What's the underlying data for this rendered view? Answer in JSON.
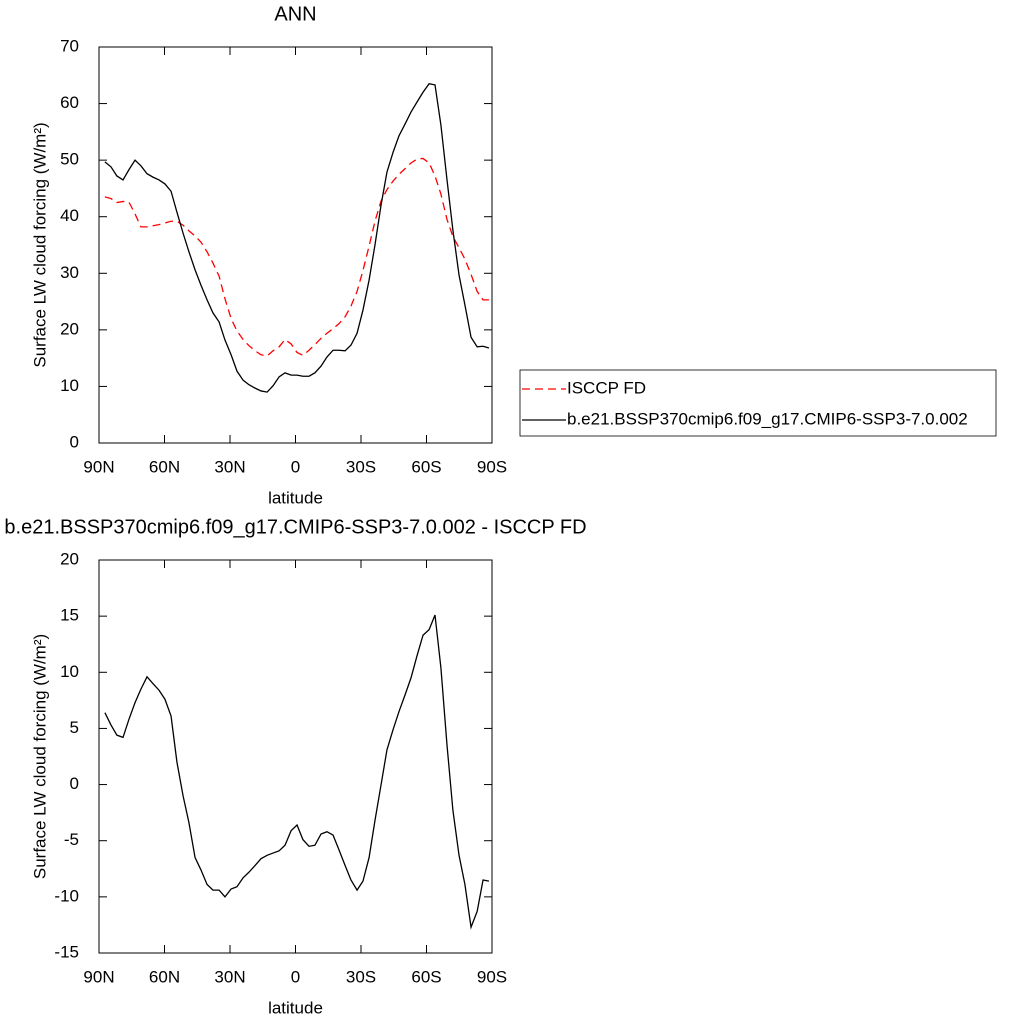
{
  "chart_data": [
    {
      "type": "line",
      "title": "ANN",
      "xlabel": "latitude",
      "ylabel": "Surface LW cloud forcing (W/m²)",
      "xlim": [
        90,
        -90
      ],
      "ylim": [
        0,
        70
      ],
      "xticks": [
        {
          "value": 90,
          "label": "90N"
        },
        {
          "value": 60,
          "label": "60N"
        },
        {
          "value": 30,
          "label": "30N"
        },
        0,
        {
          "value": -30,
          "label": "30S"
        },
        {
          "value": -60,
          "label": "60S"
        },
        {
          "value": -90,
          "label": "90S"
        }
      ],
      "yticks": [
        0,
        10,
        20,
        30,
        40,
        50,
        60,
        70
      ],
      "legend": "outside-right",
      "x": [
        87.3,
        84.5,
        81.8,
        79.0,
        76.3,
        73.5,
        70.8,
        68.0,
        65.3,
        62.5,
        59.8,
        57.0,
        54.3,
        51.5,
        48.8,
        46.0,
        43.3,
        40.5,
        37.8,
        35.0,
        32.3,
        29.5,
        26.8,
        24.0,
        21.3,
        18.5,
        15.8,
        13.0,
        10.3,
        7.5,
        4.8,
        2.0,
        -0.7,
        -3.4,
        -6.2,
        -8.9,
        -11.7,
        -14.4,
        -17.2,
        -19.9,
        -22.7,
        -25.4,
        -28.2,
        -30.9,
        -33.7,
        -36.4,
        -39.2,
        -41.9,
        -44.7,
        -47.4,
        -50.2,
        -52.9,
        -55.7,
        -58.4,
        -61.2,
        -63.9,
        -66.6,
        -69.4,
        -72.1,
        -74.9,
        -77.6,
        -80.4,
        -83.2,
        -85.9,
        -88.6
      ],
      "series": [
        {
          "name": "ISCCP FD",
          "color": "#ff0000",
          "dash": "dashed",
          "values": [
            43.5,
            43.2,
            42.5,
            42.7,
            42.6,
            40.5,
            38.2,
            38.2,
            38.4,
            38.6,
            38.9,
            39.2,
            39.2,
            38.5,
            37.5,
            36.6,
            35.5,
            33.8,
            31.8,
            29.5,
            25.5,
            22,
            19.8,
            18.3,
            17.2,
            16.3,
            15.6,
            15.4,
            16.3,
            17,
            18.3,
            17.5,
            16.0,
            15.5,
            16.4,
            17.4,
            18.5,
            19.4,
            20.2,
            21.1,
            22.3,
            24.2,
            26.8,
            30.5,
            34.8,
            39.2,
            42.8,
            44.8,
            46.3,
            47.5,
            48.5,
            49.5,
            50.2,
            50.3,
            49.5,
            47.2,
            44,
            39.5,
            36.5,
            34.5,
            32.5,
            29.8,
            26.8,
            25.3,
            25.3
          ]
        },
        {
          "name": "b.e21.BSSP370cmip6.f09_g17.CMIP6-SSP3-7.0.002",
          "color": "#000000",
          "dash": "solid",
          "values": [
            49.7,
            48.8,
            47.2,
            46.5,
            48.3,
            50.0,
            49.0,
            47.6,
            47.0,
            46.5,
            45.8,
            44.5,
            40.8,
            37.1,
            33.8,
            30.6,
            27.9,
            25.3,
            23.0,
            21.4,
            18.2,
            15.6,
            12.7,
            11.1,
            10.3,
            9.7,
            9.2,
            9.0,
            10.1,
            11.7,
            12.4,
            12.0,
            12.0,
            11.8,
            11.8,
            12.4,
            13.6,
            15.2,
            16.4,
            16.4,
            16.3,
            17.3,
            19.4,
            23.5,
            28.8,
            35.0,
            42.1,
            47.9,
            51.4,
            54.3,
            56.4,
            58.5,
            60.3,
            62.0,
            63.5,
            63.3,
            56.2,
            46.5,
            37.6,
            29.7,
            24.4,
            18.7,
            17.0,
            17.1,
            16.8
          ]
        }
      ]
    },
    {
      "type": "line",
      "title": "b.e21.BSSP370cmip6.f09_g17.CMIP6-SSP3-7.0.002 - ISCCP FD",
      "xlabel": "latitude",
      "ylabel": "Surface LW cloud forcing (W/m²)",
      "xlim": [
        90,
        -90
      ],
      "ylim": [
        -15,
        20
      ],
      "xticks": [
        {
          "value": 90,
          "label": "90N"
        },
        {
          "value": 60,
          "label": "60N"
        },
        {
          "value": 30,
          "label": "30N"
        },
        0,
        {
          "value": -30,
          "label": "30S"
        },
        {
          "value": -60,
          "label": "60S"
        },
        {
          "value": -90,
          "label": "90S"
        }
      ],
      "yticks": [
        -15,
        -10,
        -5,
        0,
        5,
        10,
        15,
        20
      ],
      "x": [
        87.3,
        84.5,
        81.8,
        79.0,
        76.3,
        73.5,
        70.8,
        68.0,
        65.3,
        62.5,
        59.8,
        57.0,
        54.3,
        51.5,
        48.8,
        46.0,
        43.3,
        40.5,
        37.8,
        35.0,
        32.3,
        29.5,
        26.8,
        24.0,
        21.3,
        18.5,
        15.8,
        13.0,
        10.3,
        7.5,
        4.8,
        2.0,
        -0.7,
        -3.4,
        -6.2,
        -8.9,
        -11.7,
        -14.4,
        -17.2,
        -19.9,
        -22.7,
        -25.4,
        -28.2,
        -30.9,
        -33.7,
        -36.4,
        -39.2,
        -41.9,
        -44.7,
        -47.4,
        -50.2,
        -52.9,
        -55.7,
        -58.4,
        -61.2,
        -63.9,
        -66.6,
        -69.4,
        -72.1,
        -74.9,
        -77.6,
        -80.4,
        -83.2,
        -85.9,
        -88.6
      ],
      "series": [
        {
          "color": "#000000",
          "dash": "solid",
          "values": [
            6.4,
            5.3,
            4.4,
            4.2,
            5.8,
            7.3,
            8.5,
            9.6,
            9.0,
            8.4,
            7.6,
            6.1,
            2.0,
            -1.0,
            -3.4,
            -6.5,
            -7.6,
            -8.9,
            -9.4,
            -9.4,
            -10.0,
            -9.3,
            -9.1,
            -8.3,
            -7.8,
            -7.2,
            -6.6,
            -6.3,
            -6.1,
            -5.9,
            -5.4,
            -4.1,
            -3.6,
            -4.9,
            -5.5,
            -5.4,
            -4.4,
            -4.2,
            -4.5,
            -5.8,
            -7.2,
            -8.5,
            -9.4,
            -8.6,
            -6.5,
            -3.2,
            0.0,
            3.1,
            4.9,
            6.5,
            8.0,
            9.5,
            11.5,
            13.3,
            13.8,
            15.1,
            10.4,
            3.5,
            -2.3,
            -6.3,
            -8.9,
            -12.7,
            -11.3,
            -8.5,
            -8.6
          ]
        }
      ]
    }
  ]
}
